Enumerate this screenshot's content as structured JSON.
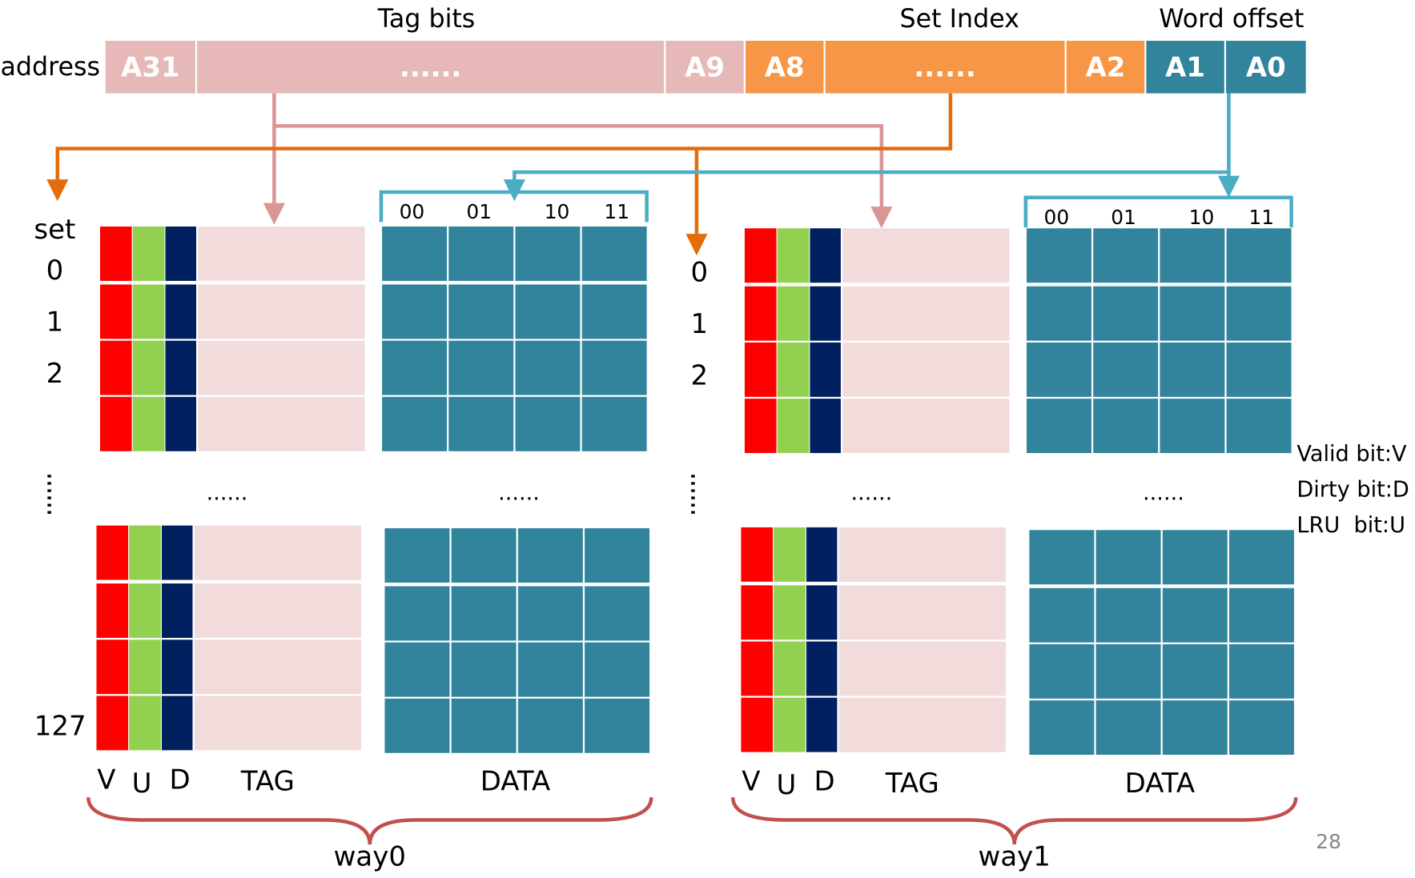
{
  "address": {
    "label": "address",
    "groups": [
      {
        "label": "Tag bits",
        "fields": [
          "A31",
          "......",
          "A9"
        ]
      },
      {
        "label": "Set Index",
        "fields": [
          "A8",
          "......",
          "A2"
        ]
      },
      {
        "label": "Word offset",
        "fields": [
          "A1",
          "A0"
        ]
      }
    ]
  },
  "ways": [
    {
      "name": "way0",
      "set_label": "set",
      "set_numbers": [
        "0",
        "1",
        "2",
        "127"
      ],
      "offsets": [
        "00",
        "01",
        "10",
        "11"
      ],
      "columns": [
        "V",
        "U",
        "D",
        "TAG",
        "DATA"
      ],
      "ellipses": [
        "......",
        "......"
      ]
    },
    {
      "name": "way1",
      "set_numbers": [
        "0",
        "1",
        "2"
      ],
      "offsets": [
        "00",
        "01",
        "10",
        "11"
      ],
      "columns": [
        "V",
        "U",
        "D",
        "TAG",
        "DATA"
      ],
      "ellipses": [
        "......",
        "......"
      ]
    }
  ],
  "legend": [
    "Valid bit:V",
    "Dirty bit:D",
    "LRU  bit:U"
  ],
  "page_number": "28"
}
